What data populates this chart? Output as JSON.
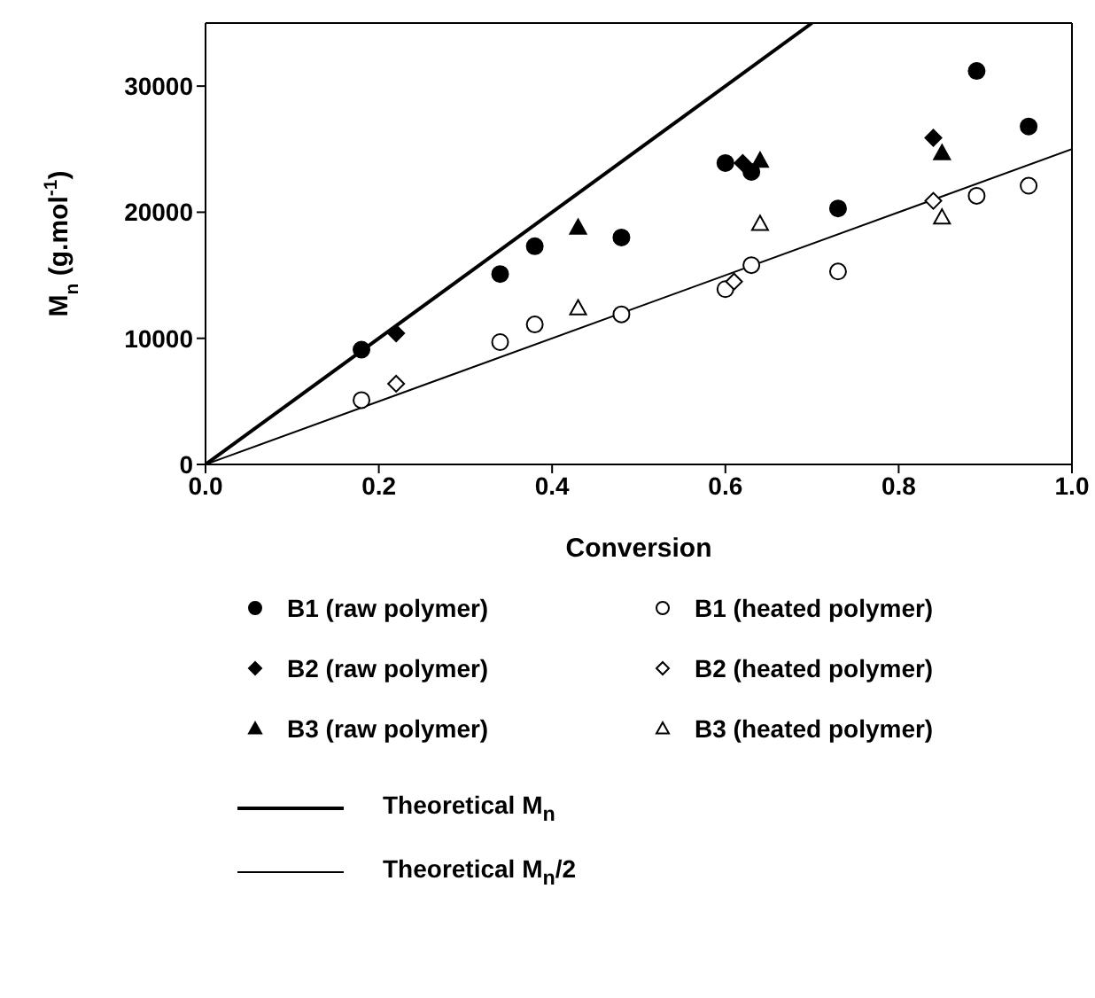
{
  "chart_data": {
    "type": "scatter",
    "xlabel": "Conversion",
    "ylabel": "M$_{n}$ (g.mol$^{-1}$)",
    "xlim": [
      0,
      1
    ],
    "xticks": [
      {
        "value": 0,
        "label": "0.0"
      },
      {
        "value": 0.2,
        "label": "0.2"
      },
      {
        "value": 0.4,
        "label": "0.4"
      },
      {
        "value": 0.6,
        "label": "0.6"
      },
      {
        "value": 0.8,
        "label": "0.8"
      },
      {
        "value": 1,
        "label": "1.0"
      }
    ],
    "ylim": [
      0,
      35000
    ],
    "yticks": [
      0,
      10000,
      20000,
      30000
    ],
    "legend": "bottom",
    "series": [
      {
        "name": "B1 (raw polymer)",
        "color": "#000000",
        "marker": "circle",
        "x": [
          0.18,
          0.34,
          0.38,
          0.48,
          0.6,
          0.63,
          0.73,
          0.89,
          0.95
        ],
        "values": [
          9100,
          15100,
          17300,
          18000,
          23900,
          23200,
          20300,
          31200,
          26800
        ]
      },
      {
        "name": "B1 (heated polymer)",
        "color": "#ffffff",
        "marker": "circle",
        "x": [
          0.18,
          0.34,
          0.38,
          0.48,
          0.6,
          0.63,
          0.73,
          0.89,
          0.95
        ],
        "values": [
          5100,
          9700,
          11100,
          11900,
          13900,
          15800,
          15300,
          21300,
          22100
        ]
      },
      {
        "name": "B2 (raw polymer)",
        "color": "#000000",
        "marker": "diamond",
        "x": [
          0.22,
          0.62,
          0.84
        ],
        "values": [
          10400,
          23900,
          25900
        ]
      },
      {
        "name": "B2 (heated polymer)",
        "color": "#ffffff",
        "marker": "diamond",
        "x": [
          0.22,
          0.61,
          0.84
        ],
        "values": [
          6400,
          14500,
          20900
        ]
      },
      {
        "name": "B3 (raw polymer)",
        "color": "#000000",
        "marker": "triangle",
        "x": [
          0.43,
          0.64,
          0.85
        ],
        "values": [
          18800,
          24100,
          24700
        ]
      },
      {
        "name": "B3 (heated polymer)",
        "color": "#ffffff",
        "marker": "triangle",
        "x": [
          0.43,
          0.64,
          0.85
        ],
        "values": [
          12400,
          19100,
          19600
        ]
      },
      {
        "name": "Theoretical M$_{n}$",
        "type": "line",
        "color": "#000000",
        "marker": "none",
        "x": [
          0,
          0.7
        ],
        "values": [
          0,
          35000
        ]
      },
      {
        "name": "Theoretical M$_{n}$/2",
        "type": "line",
        "color": "#000000",
        "marker": "none",
        "x": [
          0,
          1
        ],
        "values": [
          0,
          25000
        ]
      }
    ]
  }
}
